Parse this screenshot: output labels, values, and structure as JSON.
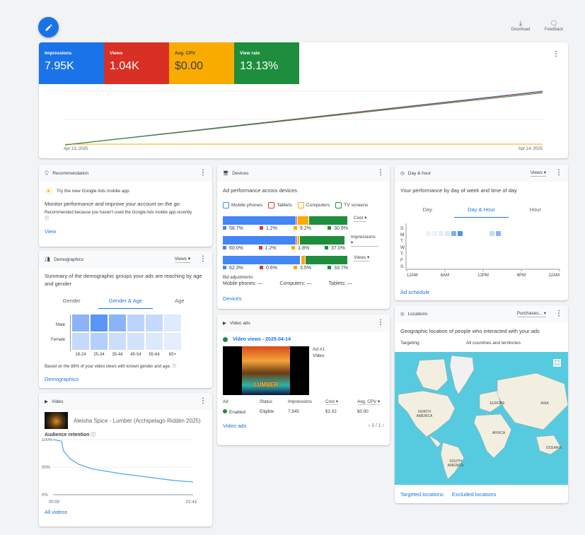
{
  "colors": {
    "blue": "#4285f4",
    "red": "#db3a2c",
    "orange": "#f9ab00",
    "green": "#1e8e3e",
    "link": "#1a73e8"
  },
  "toolbar": {
    "download": "Download",
    "feedback": "Feedback"
  },
  "overview": {
    "metrics": [
      {
        "label": "Impressions",
        "value": "7.95K",
        "color": "#1a73e8"
      },
      {
        "label": "Views",
        "value": "1.04K",
        "color": "#d93025"
      },
      {
        "label": "Avg. CPV",
        "value": "$0.00",
        "color": "#f9ab00"
      },
      {
        "label": "View rate",
        "value": "13.13%",
        "color": "#1e8e3e"
      }
    ],
    "x_start": "Apr 13, 2025",
    "x_end": "Apr 14, 2025"
  },
  "chart_data": [
    {
      "type": "line",
      "x": [
        "Apr 13, 2025",
        "Apr 14, 2025"
      ],
      "series": [
        {
          "name": "Impressions",
          "values": [
            0,
            7950
          ],
          "color": "#1a73e8"
        },
        {
          "name": "Views",
          "values": [
            0,
            1040
          ],
          "color": "#d93025"
        },
        {
          "name": "Avg. CPV",
          "values": [
            0,
            0
          ],
          "color": "#f9ab00"
        },
        {
          "name": "View rate",
          "values": [
            0,
            13.13
          ],
          "color": "#1e8e3e"
        }
      ],
      "grid": true
    },
    {
      "type": "line",
      "title": "Audience retention",
      "x": [
        0,
        10,
        12,
        20,
        30,
        45,
        60,
        80,
        100,
        120,
        140,
        163
      ],
      "y": [
        100,
        97,
        80,
        65,
        55,
        47,
        43,
        38,
        34,
        30,
        26,
        23
      ],
      "ylim": [
        0,
        100
      ],
      "yticks": [
        "0%",
        "50%",
        "100%"
      ],
      "xticks": [
        "00:00",
        "02:43"
      ]
    }
  ],
  "recommendation": {
    "title": "Recommendation",
    "headline": "Try the new Google Ads mobile app",
    "body": "Monitor performance and improve your account on the go",
    "reason": "Recommended because you haven't used the Google Ads mobile app recently",
    "link": "View"
  },
  "demographics": {
    "title": "Demographics",
    "metric": "Views",
    "summary": "Summary of the demographic groups your ads are reaching by age and gender",
    "tabs": [
      "Gender",
      "Gender & Age",
      "Age"
    ],
    "active_tab": 1,
    "rows": [
      "Male",
      "Female"
    ],
    "ages": [
      "18-24",
      "25-34",
      "35-44",
      "45-54",
      "55-64",
      "65+"
    ],
    "intensity": [
      [
        0.6,
        0.9,
        0.6,
        0.3,
        0.25,
        0.08
      ],
      [
        0.25,
        0.35,
        0.2,
        0.15,
        0.1,
        0.05
      ]
    ],
    "note": "Based on the 88% of your video views with known gender and age.",
    "link": "Demographics"
  },
  "video": {
    "title": "Video",
    "name": "Aleisha Spice - Lumber (Archipelago Riddim 2025)",
    "retention_label": "Audience retention",
    "link": "All videos"
  },
  "devices": {
    "title": "Devices",
    "subtitle": "Ad performance across devices",
    "legend": [
      "Mobile phones",
      "Tablets",
      "Computers",
      "TV screens"
    ],
    "rows": [
      {
        "metric": "Cost",
        "values": [
          58.7,
          1.2,
          9.2,
          30.9
        ],
        "labels": [
          "58.7%",
          "1.2%",
          "9.2%",
          "30.9%"
        ]
      },
      {
        "metric": "Impressions",
        "values": [
          60.0,
          1.2,
          1.8,
          37.0
        ],
        "labels": [
          "60.0%",
          "1.2%",
          "1.8%",
          "37.0%"
        ]
      },
      {
        "metric": "Views",
        "values": [
          62.3,
          0.6,
          3.5,
          33.7
        ],
        "labels": [
          "62.3%",
          "0.6%",
          "3.5%",
          "33.7%"
        ]
      }
    ],
    "bid_title": "Bid adjustments",
    "bids": [
      "Mobile phones: —",
      "Computers: —",
      "Tablets: —"
    ],
    "link": "Devices"
  },
  "video_ads": {
    "title": "Video ads",
    "campaign": "Video views - 2025-04-14",
    "ad_name": "Ad #1",
    "ad_type": "Video",
    "thumb_text": "LUMBER",
    "headers": [
      "Ad",
      "Status",
      "Impressions",
      "Cost",
      "Avg. CPV"
    ],
    "row": [
      "Enabled",
      "Eligible",
      "7,945",
      "$2.02",
      "$0.00"
    ],
    "link": "Video ads",
    "pager": "1 / 1"
  },
  "dayhour": {
    "title": "Day & hour",
    "metric": "Views",
    "subtitle": "Your performance by day of week and time of day",
    "tabs": [
      "Day",
      "Day & Hour",
      "Hour"
    ],
    "active_tab": 1,
    "days": [
      "S",
      "M",
      "T",
      "W",
      "T",
      "F",
      "S"
    ],
    "xticks": [
      "12AM",
      "6AM",
      "12PM",
      "6PM",
      "12AM"
    ],
    "cells": [
      {
        "day": 1,
        "hour": 3,
        "v": 0.05
      },
      {
        "day": 1,
        "hour": 4,
        "v": 0.05
      },
      {
        "day": 1,
        "hour": 5,
        "v": 0.08
      },
      {
        "day": 1,
        "hour": 6,
        "v": 0.12
      },
      {
        "day": 1,
        "hour": 7,
        "v": 0.6
      },
      {
        "day": 1,
        "hour": 8,
        "v": 0.85
      },
      {
        "day": 1,
        "hour": 13,
        "v": 0.25
      },
      {
        "day": 1,
        "hour": 14,
        "v": 0.55
      }
    ],
    "link": "Ad schedule"
  },
  "locations": {
    "title": "Locations",
    "metric": "Purchases...",
    "subtitle": "Geographic location of people who interacted with your ads",
    "targeting_label": "Targeting",
    "targeting_value": "All countries and territories",
    "regions": [
      "NORTH AMERICA",
      "SOUTH AMERICA",
      "EUROPE",
      "AFRICA",
      "ASIA",
      "OCEANIA"
    ],
    "links": [
      "Targeted locations",
      "Excluded locations"
    ]
  }
}
